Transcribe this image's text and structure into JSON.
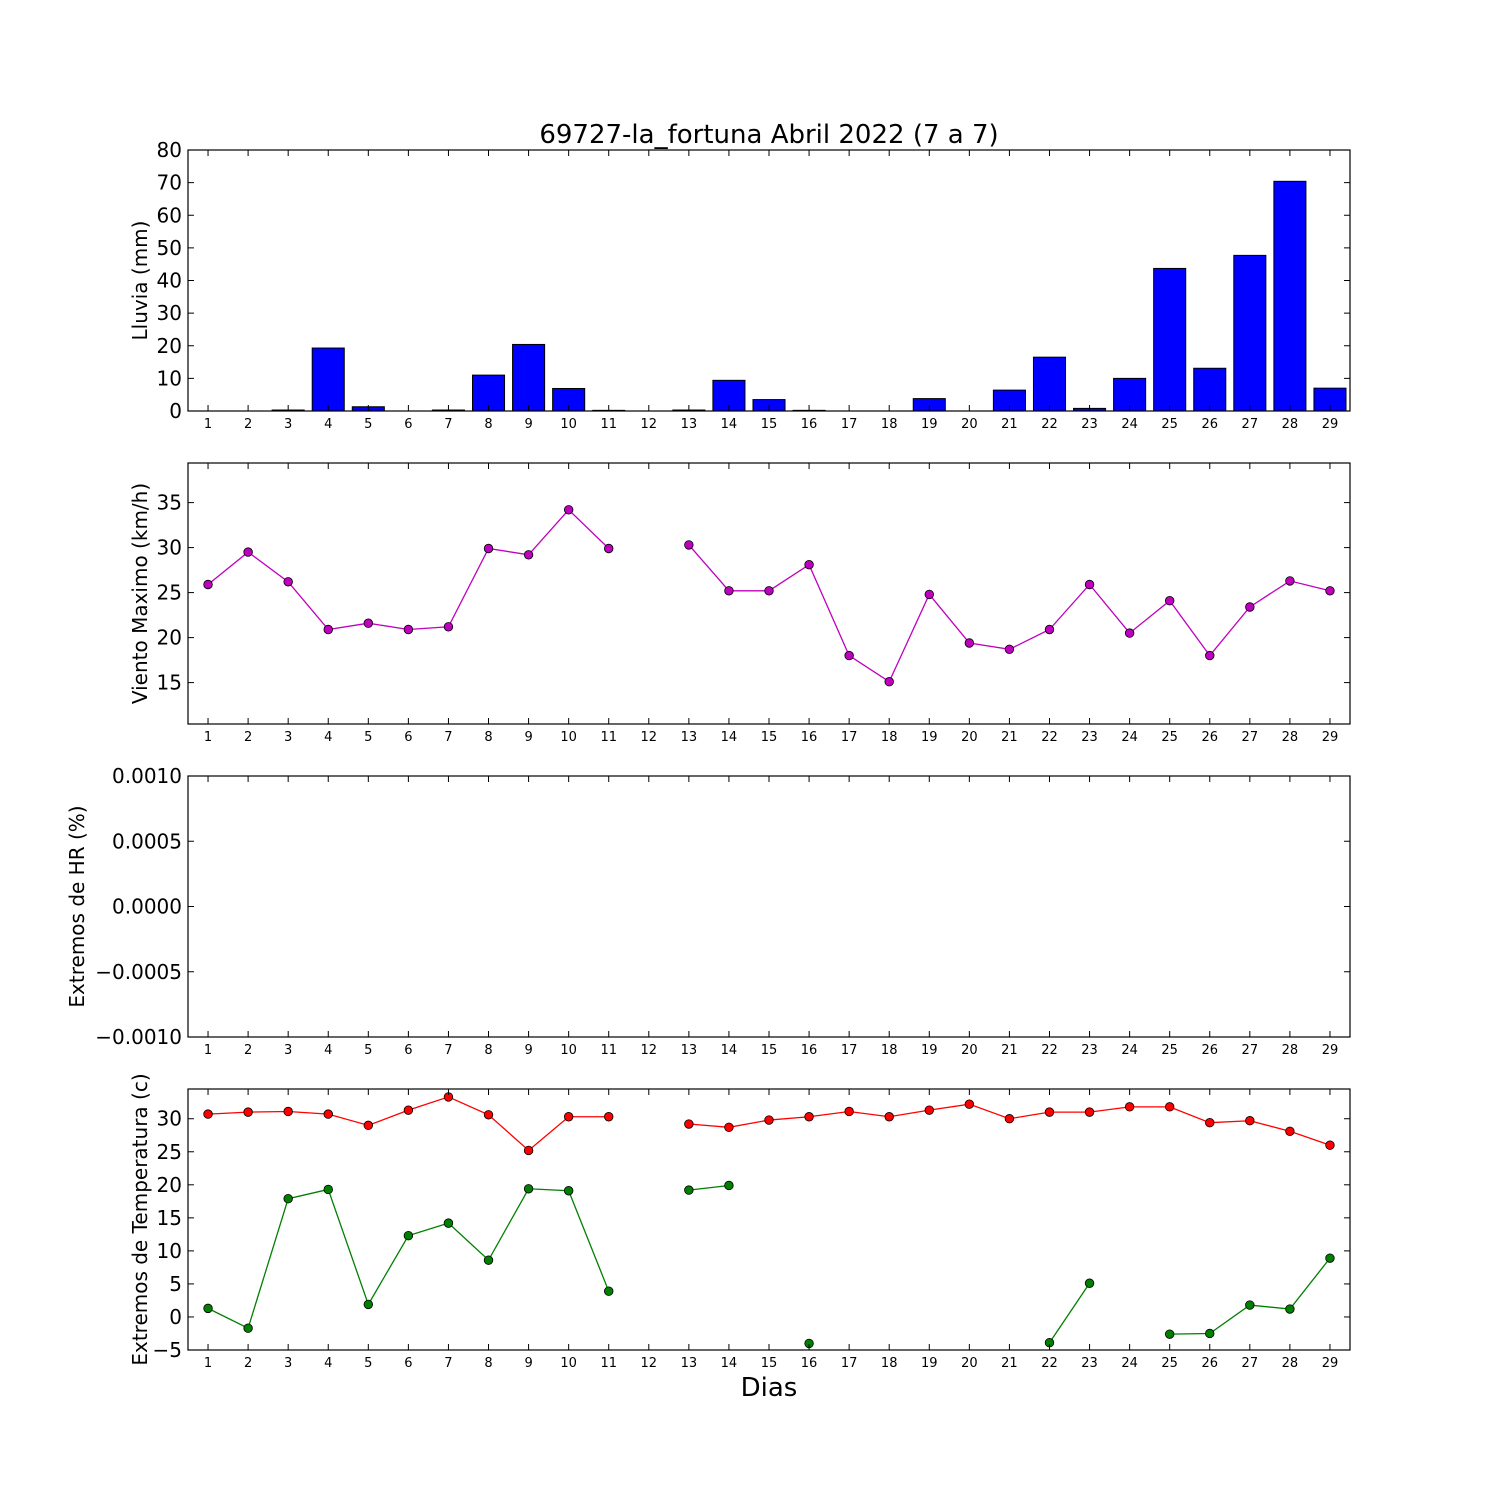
{
  "chart_data": {
    "title": "69727-la_fortuna Abril 2022  (7 a 7)",
    "xlabel": "Dias",
    "days": [
      1,
      2,
      3,
      4,
      5,
      6,
      7,
      8,
      9,
      10,
      11,
      12,
      13,
      14,
      15,
      16,
      17,
      18,
      19,
      20,
      21,
      22,
      23,
      24,
      25,
      26,
      27,
      28,
      29
    ],
    "panels": [
      {
        "type": "bar",
        "ylabel": "Lluvia (mm)",
        "ylim": [
          0,
          80
        ],
        "yticks": [
          0,
          10,
          20,
          30,
          40,
          50,
          60,
          70,
          80
        ],
        "ytick_labels": [
          "0",
          "10",
          "20",
          "30",
          "40",
          "50",
          "60",
          "70",
          "80"
        ],
        "series": [
          {
            "color": "#0000ff",
            "values": [
              0,
              0,
              0.3,
              19.3,
              1.3,
              0,
              0.3,
              11,
              20.4,
              6.9,
              0.2,
              0,
              0.3,
              9.4,
              3.5,
              0.2,
              0,
              0,
              3.8,
              0,
              6.4,
              16.5,
              0.8,
              10,
              43.7,
              13.1,
              47.7,
              70.4,
              7
            ]
          }
        ]
      },
      {
        "type": "line",
        "ylabel": "Viento Maximo (km/h)",
        "ylim": [
          10.4,
          39.4
        ],
        "yticks": [
          15,
          20,
          25,
          30,
          35
        ],
        "ytick_labels": [
          "15",
          "20",
          "25",
          "30",
          "35"
        ],
        "series": [
          {
            "color": "#bf00bf",
            "values": [
              25.9,
              29.5,
              26.2,
              20.9,
              21.6,
              20.9,
              21.2,
              29.9,
              29.2,
              34.2,
              29.9,
              null,
              30.3,
              25.2,
              25.2,
              28.1,
              18,
              15.1,
              24.8,
              19.4,
              18.7,
              20.9,
              25.9,
              20.5,
              24.1,
              18,
              23.4,
              26.3,
              25.2
            ]
          }
        ]
      },
      {
        "type": "line",
        "ylabel": "Extremos de HR (%)",
        "ylim": [
          -0.001,
          0.001
        ],
        "yticks": [
          -0.001,
          -0.0005,
          0,
          0.0005,
          0.001
        ],
        "ytick_labels": [
          "−0.0010",
          "−0.0005",
          "0.0000",
          "0.0005",
          "0.0010"
        ],
        "series": []
      },
      {
        "type": "line",
        "ylabel": "Extremos de Temperatura (c)",
        "ylim": [
          -5,
          34.5
        ],
        "yticks": [
          -5,
          0,
          5,
          10,
          15,
          20,
          25,
          30
        ],
        "ytick_labels": [
          "−5",
          "0",
          "5",
          "10",
          "15",
          "20",
          "25",
          "30"
        ],
        "series": [
          {
            "color": "#ff0000",
            "values": [
              30.7,
              31.0,
              31.1,
              30.7,
              29.0,
              31.3,
              33.3,
              30.6,
              25.2,
              30.3,
              30.3,
              null,
              29.2,
              28.7,
              29.8,
              30.3,
              31.1,
              30.3,
              31.3,
              32.2,
              30.0,
              31.0,
              31.0,
              31.8,
              31.8,
              29.4,
              29.7,
              28.1,
              26.0
            ]
          },
          {
            "color": "#008000",
            "values": [
              1.3,
              -1.7,
              17.9,
              19.3,
              1.9,
              12.3,
              14.2,
              8.6,
              19.4,
              19.1,
              3.9,
              null,
              19.2,
              19.9,
              null,
              -4.0,
              null,
              null,
              null,
              null,
              null,
              -3.9,
              5.1,
              null,
              -2.6,
              -2.5,
              1.8,
              1.2,
              8.9
            ]
          }
        ]
      }
    ]
  }
}
